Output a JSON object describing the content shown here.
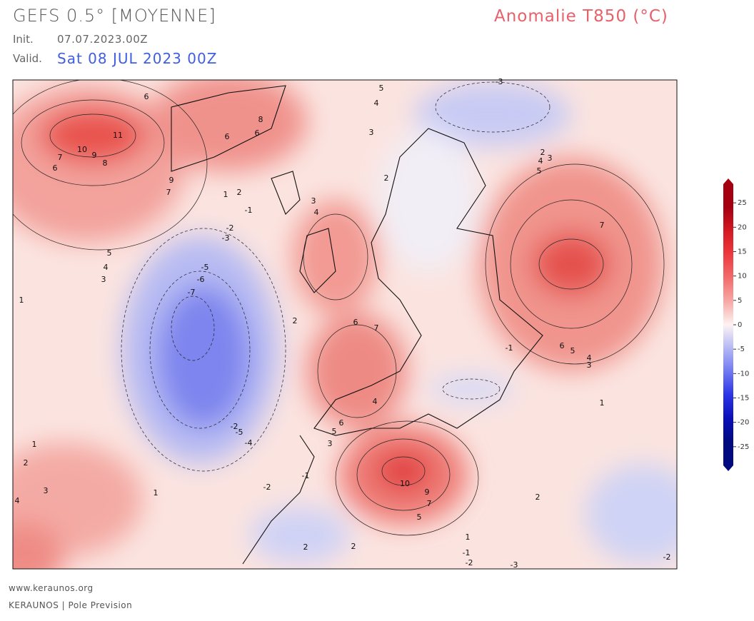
{
  "header": {
    "model": "GEFS 0.5° [MOYENNE]",
    "init_label": "Init.",
    "init": "07.07.2023.00Z",
    "valid_label": "Valid.",
    "valid": "Sat 08 JUL 2023 00Z",
    "product": "Anomalie T850 (°C)"
  },
  "colorbar": {
    "lim": [
      -30,
      30
    ],
    "ticks": [
      25,
      20,
      15,
      10,
      5,
      0,
      -5,
      -10,
      -15,
      -20,
      -25
    ],
    "colors": [
      "#a50010",
      "#d41a22",
      "#ec3a3e",
      "#f26c6c",
      "#f7a8a6",
      "#fdf3f2",
      "#b4b8f5",
      "#7078f0",
      "#2b34e6",
      "#0a10b8",
      "#020a80"
    ]
  },
  "map": {
    "contour_labels": [
      6,
      11,
      10,
      9,
      8,
      7,
      6,
      8,
      6,
      6,
      9,
      7,
      1,
      2,
      -1,
      -2,
      -3,
      -5,
      -6,
      -7,
      5,
      4,
      3,
      1,
      3,
      4,
      3,
      2,
      4,
      5,
      7,
      5,
      4,
      2,
      3,
      6,
      5,
      4,
      3,
      -1,
      -5,
      -4,
      -2,
      10,
      9,
      7,
      5,
      2,
      1,
      -1,
      -2,
      -3,
      -2,
      2,
      2,
      1,
      3,
      2,
      1,
      4,
      -2,
      -1,
      5,
      6,
      3,
      4,
      2,
      6,
      7,
      1,
      -3
    ]
  },
  "footer": {
    "site": "www.keraunos.org",
    "credit": "KERAUNOS | Pole Prevision"
  }
}
